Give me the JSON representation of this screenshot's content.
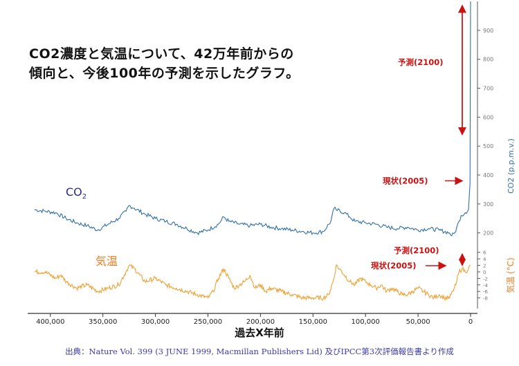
{
  "caption": {
    "line1": "CO2濃度と気温について、42万年前からの",
    "line2": "傾向と、今後100年の予測を示したグラフ。"
  },
  "source": "出典：Nature Vol. 399 (3 JUNE 1999, Macmillan Publishers Lid) 及びIPCC第3次評価報告書より作成",
  "colors": {
    "co2": "#2f6fa8",
    "temp": "#f0a030",
    "annotation": "#cc1111",
    "co2_label": "#2a2a8c",
    "temp_label": "#f07c20"
  },
  "chart_data": [
    {
      "type": "line",
      "title": "",
      "series_label": "CO2",
      "series_label_sub": "2",
      "series_label_main": "CO",
      "xlabel": "過去X年前",
      "ylabel": "CO2 (p.p.m.v.)",
      "x_reversed": true,
      "xlim": [
        415000,
        0
      ],
      "ylim": [
        180,
        1000
      ],
      "x_ticks": [
        400000,
        350000,
        300000,
        250000,
        200000,
        150000,
        100000,
        50000,
        0
      ],
      "x_tick_labels": [
        "400,000",
        "350,000",
        "300,000",
        "250,000",
        "200,000",
        "150,000",
        "100,000",
        "50,000",
        "0"
      ],
      "y_ticks": [
        200,
        300,
        400,
        500,
        600,
        700,
        800,
        900
      ],
      "y_tick_labels": [
        "200",
        "300",
        "400",
        "500",
        "600",
        "700",
        "800",
        "900"
      ],
      "series": [
        {
          "name": "CO2",
          "x": [
            415000,
            405000,
            395000,
            385000,
            375000,
            365000,
            355000,
            345000,
            335000,
            328000,
            325000,
            320000,
            310000,
            300000,
            290000,
            280000,
            270000,
            260000,
            250000,
            240000,
            235000,
            230000,
            220000,
            210000,
            200000,
            190000,
            180000,
            170000,
            160000,
            150000,
            140000,
            133000,
            130000,
            128000,
            120000,
            115000,
            110000,
            100000,
            90000,
            80000,
            70000,
            60000,
            50000,
            40000,
            30000,
            20000,
            18000,
            15000,
            11000,
            9000,
            5000,
            2000,
            500,
            0
          ],
          "y": [
            280,
            275,
            270,
            250,
            235,
            225,
            210,
            230,
            250,
            275,
            295,
            285,
            265,
            250,
            240,
            230,
            215,
            200,
            210,
            230,
            255,
            240,
            230,
            225,
            230,
            220,
            215,
            210,
            205,
            200,
            205,
            240,
            285,
            280,
            270,
            255,
            240,
            235,
            230,
            220,
            215,
            220,
            210,
            215,
            210,
            200,
            190,
            200,
            240,
            260,
            270,
            280,
            370,
            1000
          ]
        }
      ],
      "annotations": [
        {
          "label": "予測(2100)",
          "x": 0,
          "y_from": 1000,
          "y_to": 540
        },
        {
          "label": "現状(2005)",
          "x": 0,
          "y": 380
        }
      ]
    },
    {
      "type": "line",
      "title": "",
      "series_label": "気温",
      "ylabel": "気温 (°C)",
      "x_reversed": true,
      "xlim": [
        415000,
        0
      ],
      "ylim": [
        -10,
        7
      ],
      "y_ticks": [
        -8,
        -6,
        -4,
        -2,
        0,
        2,
        4,
        6
      ],
      "y_tick_labels": [
        "-8",
        "-6",
        "-4",
        "-2",
        "0",
        "2",
        "4",
        "6"
      ],
      "series": [
        {
          "name": "気温",
          "x": [
            415000,
            405000,
            395000,
            390000,
            385000,
            375000,
            365000,
            355000,
            345000,
            335000,
            328000,
            325000,
            320000,
            310000,
            300000,
            290000,
            280000,
            270000,
            260000,
            250000,
            245000,
            240000,
            235000,
            230000,
            225000,
            220000,
            215000,
            210000,
            205000,
            200000,
            195000,
            190000,
            180000,
            170000,
            160000,
            150000,
            140000,
            135000,
            130000,
            128000,
            125000,
            120000,
            115000,
            110000,
            105000,
            100000,
            95000,
            90000,
            85000,
            80000,
            75000,
            70000,
            65000,
            60000,
            55000,
            50000,
            45000,
            40000,
            35000,
            30000,
            25000,
            20000,
            17000,
            14000,
            11000,
            8000,
            5000,
            2000,
            0
          ],
          "y": [
            0,
            0,
            -2,
            -1,
            -3,
            -5,
            -4,
            -6,
            -5,
            -4,
            0,
            2,
            1,
            -3,
            -2,
            -4,
            -5,
            -6,
            -7,
            -8,
            -6,
            -2,
            1,
            -2,
            -5,
            -4,
            -3,
            -1,
            -5,
            -4,
            -6,
            -5,
            -6,
            -7,
            -8,
            -8,
            -8,
            -7,
            -2,
            2,
            1,
            -1,
            -3,
            -4,
            -2,
            -3,
            -4,
            -5,
            -4,
            -6,
            -5,
            -6,
            -7,
            -7,
            -6,
            -5,
            -6,
            -7,
            -8,
            -7,
            -8,
            -8,
            -6,
            -4,
            0,
            1,
            0,
            1,
            2
          ]
        }
      ],
      "annotations": [
        {
          "label": "予測(2100)",
          "x": 0,
          "y_from": 5.5,
          "y_to": 2
        },
        {
          "label": "現状(2005)",
          "x": 0,
          "y": 1
        }
      ]
    }
  ]
}
